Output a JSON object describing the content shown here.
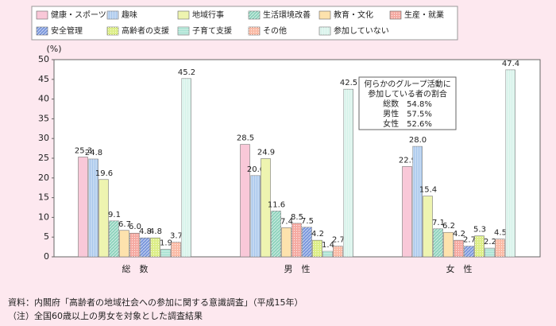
{
  "chart_data": {
    "type": "bar",
    "y_label": "(%)",
    "categories": [
      "総　数",
      "男　性",
      "女　性"
    ],
    "series": [
      {
        "name": "健康・スポーツ",
        "color": "#f9c8d8",
        "values": [
          25.3,
          28.5,
          22.9
        ]
      },
      {
        "name": "趣味",
        "color": "#aac8ec",
        "values": [
          24.8,
          20.6,
          28.0
        ],
        "value_labels": [
          "24.8",
          "20.6",
          "28.0"
        ]
      },
      {
        "name": "地域行事",
        "color": "#eef4b0",
        "values": [
          19.6,
          24.9,
          15.4
        ]
      },
      {
        "name": "生活環境改善",
        "color": "#8fd3bd",
        "values": [
          9.1,
          11.6,
          7.1
        ]
      },
      {
        "name": "教育・文化",
        "color": "#fde2ad",
        "values": [
          6.7,
          7.4,
          6.2
        ]
      },
      {
        "name": "生産・就業",
        "color": "#f5aaa2",
        "values": [
          6.0,
          8.5,
          4.2
        ],
        "value_labels": [
          "6.0",
          "8.5",
          "4.2"
        ]
      },
      {
        "name": "安全管理",
        "color": "#7b98dc",
        "values": [
          4.8,
          7.5,
          2.7
        ]
      },
      {
        "name": "高齢者の支援",
        "color": "#dcee86",
        "values": [
          4.8,
          4.2,
          5.3
        ]
      },
      {
        "name": "子育て支援",
        "color": "#a8e2d2",
        "values": [
          1.9,
          1.4,
          2.2
        ]
      },
      {
        "name": "その他",
        "color": "#fabba6",
        "values": [
          3.7,
          2.7,
          4.5
        ]
      },
      {
        "name": "参加していない",
        "color": "#d6f3ea",
        "values": [
          45.2,
          42.5,
          47.4
        ]
      }
    ],
    "ylim": [
      0,
      50
    ],
    "yticks": [
      0,
      5,
      10,
      15,
      20,
      25,
      30,
      35,
      40,
      45,
      50
    ],
    "annotation": [
      "何らかのグループ活動に",
      "参加している者の割合",
      "総数　54.8%",
      "男性　57.5%",
      "女性　52.6%"
    ],
    "notes": [
      "資料：内閣府「高齢者の地域社会への参加に関する意識調査」（平成15年）",
      "（注）全国60歳以上の男女を対象とした調査結果"
    ]
  }
}
